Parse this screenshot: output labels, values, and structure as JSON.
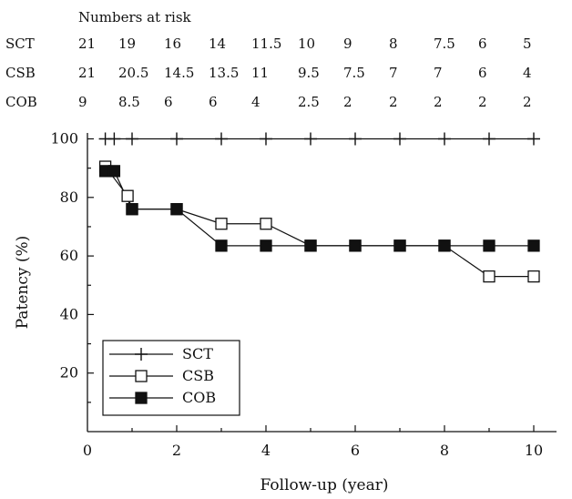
{
  "risk_table": {
    "title": "Numbers at risk",
    "rows": [
      {
        "label": "SCT",
        "values": [
          "21",
          "19",
          "16",
          "14",
          "11.5",
          "10",
          "9",
          "8",
          "7.5",
          "6",
          "5"
        ]
      },
      {
        "label": "CSB",
        "values": [
          "21",
          "20.5",
          "14.5",
          "13.5",
          "11",
          "9.5",
          "7.5",
          "7",
          "7",
          "6",
          "4"
        ]
      },
      {
        "label": "COB",
        "values": [
          "9",
          "8.5",
          "6",
          "6",
          "4",
          "2.5",
          "2",
          "2",
          "2",
          "2",
          "2"
        ]
      }
    ]
  },
  "chart_data": {
    "type": "line",
    "xlabel": "Follow-up (year)",
    "ylabel": "Patency (%)",
    "xlim": [
      0,
      11
    ],
    "ylim": [
      0,
      108
    ],
    "xticks": [
      0,
      2,
      4,
      6,
      8,
      10
    ],
    "yticks": [
      20,
      40,
      60,
      80,
      100
    ],
    "grid": false,
    "legend_position": "bottom-left",
    "series": [
      {
        "name": "SCT",
        "marker": "plus",
        "x": [
          0.4,
          0.6,
          1,
          2,
          3,
          4,
          5,
          6,
          7,
          8,
          9,
          10
        ],
        "y": [
          100,
          100,
          100,
          100,
          100,
          100,
          100,
          100,
          100,
          100,
          100,
          100
        ]
      },
      {
        "name": "CSB",
        "marker": "open-square",
        "x": [
          0.4,
          0.9,
          1.0,
          2,
          3,
          4,
          5,
          6,
          7,
          8,
          9,
          10
        ],
        "y": [
          90.5,
          80.5,
          76,
          76,
          71,
          71,
          63.5,
          63.5,
          63.5,
          63.5,
          53,
          53
        ]
      },
      {
        "name": "COB",
        "marker": "filled-square",
        "x": [
          0.4,
          0.6,
          1.0,
          2,
          3,
          4,
          5,
          6,
          7,
          8,
          9,
          10
        ],
        "y": [
          89,
          89,
          76,
          76,
          63.5,
          63.5,
          63.5,
          63.5,
          63.5,
          63.5,
          63.5,
          63.5
        ]
      }
    ]
  }
}
